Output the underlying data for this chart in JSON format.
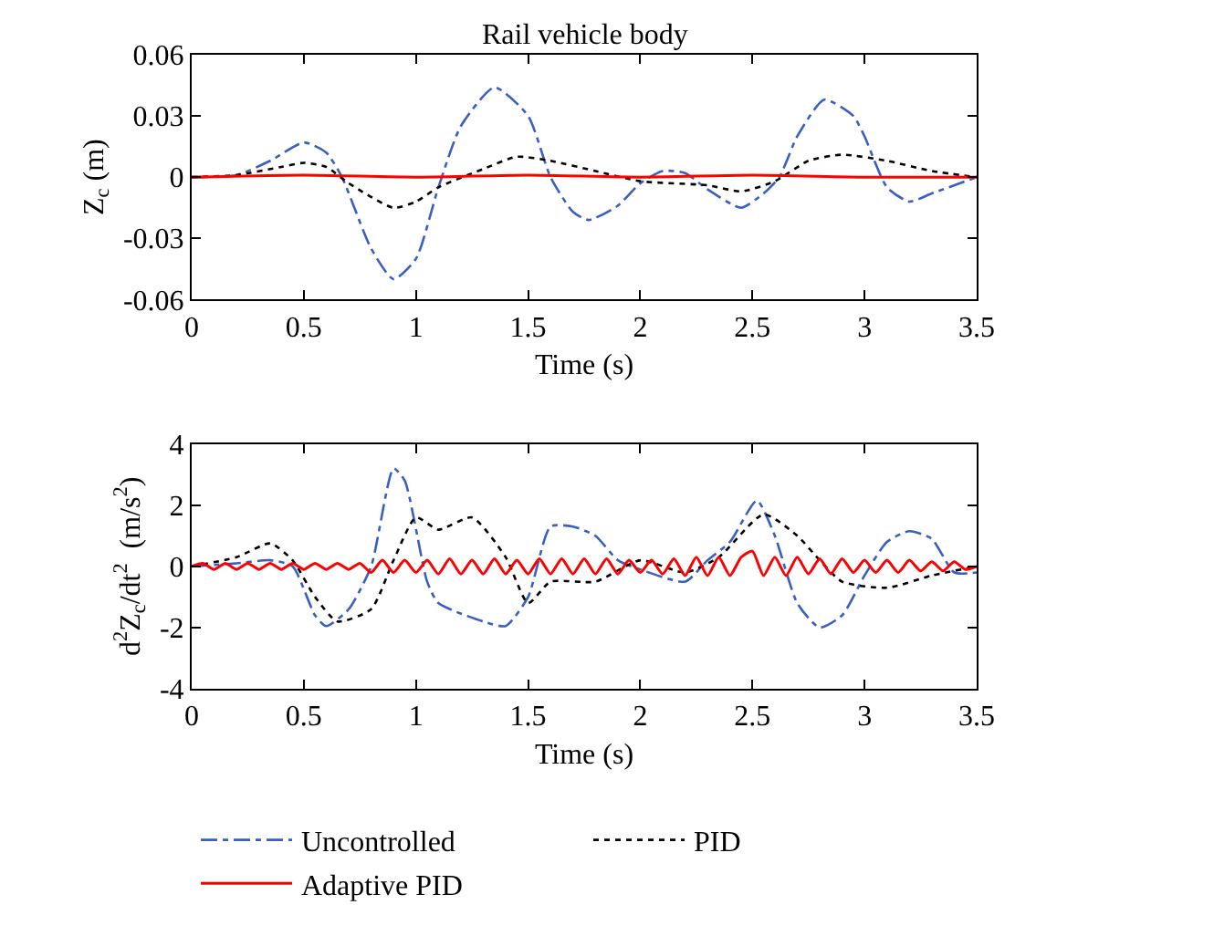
{
  "chart_data": [
    {
      "type": "line",
      "title": "Rail vehicle body",
      "xlabel": "Time (s)",
      "ylabel": "Z$_{c}$ (m)",
      "xlim": [
        0,
        3.5
      ],
      "xticks": [
        0,
        0.5,
        1,
        1.5,
        2,
        2.5,
        3,
        3.5
      ],
      "ylim": [
        -0.06,
        0.06
      ],
      "yticks": [
        -0.06,
        -0.03,
        0,
        0.03,
        0.06
      ],
      "series": [
        {
          "color": "#3a5fbf",
          "line_style": "dashdot",
          "x": [
            0,
            0.2,
            0.35,
            0.5,
            0.6,
            0.67,
            0.8,
            0.9,
            1.0,
            1.1,
            1.2,
            1.35,
            1.5,
            1.6,
            1.7,
            1.77,
            1.9,
            2.0,
            2.1,
            2.2,
            2.3,
            2.45,
            2.55,
            2.62,
            2.7,
            2.82,
            2.95,
            3.0,
            3.1,
            3.2,
            3.3,
            3.5
          ],
          "values": [
            0,
            0.001,
            0.008,
            0.017,
            0.012,
            0,
            -0.035,
            -0.05,
            -0.04,
            -0.005,
            0.025,
            0.044,
            0.03,
            0,
            -0.017,
            -0.021,
            -0.014,
            -0.003,
            0.003,
            0.002,
            -0.006,
            -0.015,
            -0.008,
            0,
            0.02,
            0.038,
            0.03,
            0.02,
            -0.005,
            -0.012,
            -0.008,
            0
          ]
        },
        {
          "color": "#000000",
          "line_style": "dotted",
          "x": [
            0,
            0.2,
            0.4,
            0.5,
            0.6,
            0.7,
            0.9,
            1.0,
            1.1,
            1.3,
            1.45,
            1.6,
            1.8,
            2.0,
            2.3,
            2.45,
            2.6,
            2.75,
            2.9,
            3.1,
            3.3,
            3.5
          ],
          "values": [
            0,
            0.001,
            0.005,
            0.007,
            0.005,
            -0.003,
            -0.015,
            -0.012,
            -0.005,
            0.004,
            0.01,
            0.008,
            0.003,
            -0.002,
            -0.004,
            -0.007,
            -0.002,
            0.008,
            0.011,
            0.008,
            0.003,
            0
          ]
        },
        {
          "color": "#ff0000",
          "line_style": "solid",
          "x": [
            0,
            0.5,
            1,
            1.5,
            2,
            2.5,
            3,
            3.5
          ],
          "values": [
            0,
            0.001,
            0,
            0.001,
            0,
            0.001,
            0,
            0
          ]
        }
      ]
    },
    {
      "type": "line",
      "xlabel": "Time (s)",
      "ylabel": "d$^{2}$Z$_{c}$/dt$^{2}$  (m/s$^{2}$)",
      "xlim": [
        0,
        3.5
      ],
      "xticks": [
        0,
        0.5,
        1,
        1.5,
        2,
        2.5,
        3,
        3.5
      ],
      "ylim": [
        -4,
        4
      ],
      "yticks": [
        -4,
        -2,
        0,
        2,
        4
      ],
      "legend": "bottom",
      "series": [
        {
          "name": "Uncontrolled",
          "color": "#3a5fbf",
          "line_style": "dashdot",
          "x": [
            0,
            0.2,
            0.35,
            0.45,
            0.55,
            0.6,
            0.7,
            0.8,
            0.9,
            0.95,
            1.05,
            1.1,
            1.3,
            1.4,
            1.5,
            1.6,
            1.7,
            1.8,
            1.9,
            2.0,
            2.2,
            2.3,
            2.4,
            2.52,
            2.6,
            2.7,
            2.8,
            2.9,
            3.0,
            3.1,
            3.2,
            3.3,
            3.4,
            3.5
          ],
          "values": [
            0,
            0.1,
            0.2,
            0,
            -1.6,
            -1.95,
            -1.4,
            0,
            3.2,
            2.8,
            -0.5,
            -1.2,
            -1.8,
            -1.95,
            -1.0,
            1.3,
            1.3,
            1.0,
            0.2,
            -0.1,
            -0.5,
            0.2,
            0.8,
            2.15,
            1.0,
            -1.2,
            -2.0,
            -1.6,
            -0.3,
            0.8,
            1.15,
            0.9,
            -0.2,
            -0.2
          ]
        },
        {
          "name": "PID",
          "color": "#000000",
          "line_style": "dotted",
          "x": [
            0,
            0.2,
            0.35,
            0.45,
            0.55,
            0.65,
            0.8,
            0.9,
            1.0,
            1.1,
            1.25,
            1.4,
            1.5,
            1.6,
            1.8,
            2.0,
            2.2,
            2.35,
            2.55,
            2.7,
            2.8,
            2.9,
            3.1,
            3.3,
            3.5
          ],
          "values": [
            0,
            0.3,
            0.75,
            0.2,
            -1.0,
            -1.8,
            -1.4,
            0.2,
            1.6,
            1.2,
            1.6,
            0.3,
            -1.2,
            -0.5,
            -0.5,
            0.2,
            -0.2,
            0.3,
            1.7,
            1.0,
            0.2,
            -0.5,
            -0.7,
            -0.3,
            0
          ]
        },
        {
          "name": "Adaptive PID",
          "color": "#ff0000",
          "line_style": "solid",
          "x": [
            0,
            0.05,
            0.1,
            0.15,
            0.2,
            0.25,
            0.3,
            0.35,
            0.4,
            0.45,
            0.5,
            0.55,
            0.6,
            0.65,
            0.7,
            0.75,
            0.8,
            0.85,
            0.9,
            0.95,
            1.0,
            1.05,
            1.1,
            1.15,
            1.2,
            1.25,
            1.3,
            1.35,
            1.4,
            1.45,
            1.5,
            1.55,
            1.6,
            1.65,
            1.7,
            1.75,
            1.8,
            1.85,
            1.9,
            1.95,
            2.0,
            2.05,
            2.1,
            2.15,
            2.2,
            2.25,
            2.3,
            2.35,
            2.4,
            2.45,
            2.5,
            2.55,
            2.6,
            2.65,
            2.7,
            2.75,
            2.8,
            2.85,
            2.9,
            2.95,
            3.0,
            3.05,
            3.1,
            3.15,
            3.2,
            3.25,
            3.3,
            3.35,
            3.4,
            3.45,
            3.5
          ],
          "values": [
            0,
            0.1,
            -0.1,
            0.1,
            -0.1,
            0.1,
            -0.1,
            0.1,
            -0.1,
            0.1,
            -0.1,
            0.1,
            -0.1,
            0.1,
            -0.1,
            0.1,
            -0.2,
            0.2,
            -0.2,
            0.2,
            -0.2,
            0.2,
            -0.25,
            0.25,
            -0.25,
            0.2,
            -0.25,
            0.25,
            -0.25,
            0.2,
            -0.25,
            0.25,
            -0.25,
            0.25,
            -0.25,
            0.25,
            -0.25,
            0.25,
            -0.25,
            0.2,
            -0.2,
            0.2,
            -0.25,
            0.25,
            -0.3,
            0.3,
            -0.3,
            0.3,
            -0.3,
            0.3,
            0.5,
            -0.3,
            0.3,
            -0.3,
            0.3,
            -0.25,
            0.25,
            -0.25,
            0.25,
            -0.2,
            0.2,
            -0.2,
            0.2,
            -0.2,
            0.2,
            -0.15,
            0.15,
            -0.15,
            0.15,
            -0.1,
            0
          ]
        }
      ]
    }
  ]
}
